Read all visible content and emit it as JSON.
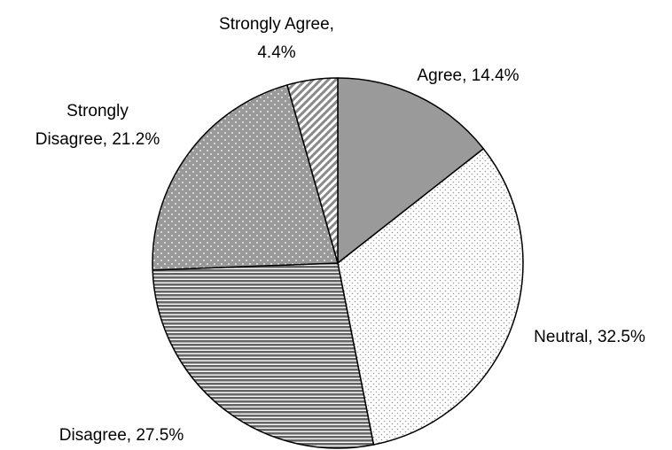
{
  "chart_data": {
    "type": "pie",
    "categories": [
      "Agree",
      "Neutral",
      "Disagree",
      "Strongly Disagree",
      "Strongly Agree"
    ],
    "values": [
      14.4,
      32.5,
      27.5,
      21.2,
      4.4
    ],
    "value_labels": [
      "14.4%",
      "32.5%",
      "27.5%",
      "21.2%",
      "4.4%"
    ]
  }
}
